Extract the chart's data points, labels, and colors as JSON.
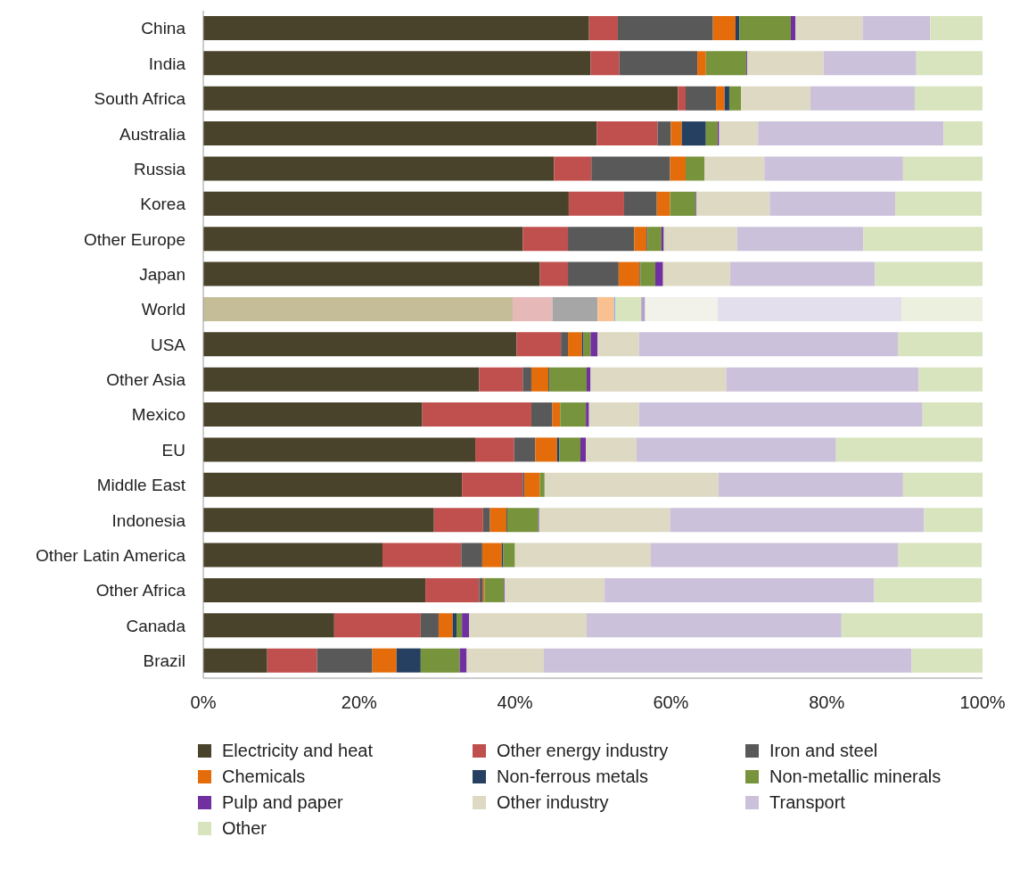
{
  "chart_data": {
    "type": "bar",
    "orientation": "horizontal",
    "stacked": true,
    "legend": "bottom",
    "categories": [
      "China",
      "India",
      "South Africa",
      "Australia",
      "Russia",
      "Korea",
      "Other Europe",
      "Japan",
      "World",
      "USA",
      "Other Asia",
      "Mexico",
      "EU",
      "Middle East",
      "Indonesia",
      "Other Latin America",
      "Other Africa",
      "Canada",
      "Brazil"
    ],
    "xlim": [
      0,
      100
    ],
    "xticks": [
      {
        "value": 0,
        "label": "0%"
      },
      {
        "value": 20,
        "label": "20%"
      },
      {
        "value": 40,
        "label": "40%"
      },
      {
        "value": 60,
        "label": "60%"
      },
      {
        "value": 80,
        "label": "80%"
      },
      {
        "value": 100,
        "label": "100%"
      }
    ],
    "series": [
      {
        "name": "Electricity and heat",
        "color": "#4a432b",
        "colors": [
          "#4a432b",
          "#4a432b",
          "#4a432b",
          "#4a432b",
          "#4a432b",
          "#4a432b",
          "#4a432b",
          "#4a432b",
          "#c4bd97",
          "#4a432b",
          "#4a432b",
          "#4a432b",
          "#4a432b",
          "#4a432b",
          "#4a432b",
          "#4a432b",
          "#4a432b",
          "#4a432b",
          "#4a432b"
        ],
        "values": [
          49.5,
          49.7,
          60.9,
          50.5,
          45.0,
          46.9,
          41.0,
          43.2,
          39.7,
          40.2,
          35.4,
          28.1,
          34.9,
          33.2,
          29.6,
          23.0,
          28.5,
          16.8,
          8.2
        ]
      },
      {
        "name": "Other energy industry",
        "color": "#c0504d",
        "colors": [
          "#c0504d",
          "#c0504d",
          "#c0504d",
          "#c0504d",
          "#c0504d",
          "#c0504d",
          "#c0504d",
          "#c0504d",
          "#e6b9b8",
          "#c0504d",
          "#c0504d",
          "#c0504d",
          "#c0504d",
          "#c0504d",
          "#c0504d",
          "#c0504d",
          "#c0504d",
          "#c0504d",
          "#c0504d"
        ],
        "values": [
          3.7,
          3.7,
          1.0,
          7.8,
          4.8,
          7.1,
          5.8,
          3.6,
          5.1,
          5.7,
          5.6,
          14.0,
          5.0,
          7.8,
          6.3,
          10.1,
          6.9,
          11.1,
          6.4
        ]
      },
      {
        "name": "Iron and steel",
        "color": "#595959",
        "colors": [
          "#595959",
          "#595959",
          "#595959",
          "#595959",
          "#595959",
          "#595959",
          "#595959",
          "#595959",
          "#a6a6a6",
          "#595959",
          "#595959",
          "#595959",
          "#595959",
          "#595959",
          "#595959",
          "#595959",
          "#595959",
          "#595959",
          "#595959"
        ],
        "values": [
          12.2,
          10.0,
          3.9,
          1.7,
          10.1,
          4.2,
          8.5,
          6.5,
          5.8,
          0.9,
          1.1,
          2.7,
          2.7,
          0.2,
          0.9,
          2.7,
          0.5,
          2.3,
          7.1
        ]
      },
      {
        "name": "Chemicals",
        "color": "#e46c0a",
        "colors": [
          "#e46c0a",
          "#e46c0a",
          "#e46c0a",
          "#e46c0a",
          "#e46c0a",
          "#e46c0a",
          "#e46c0a",
          "#e46c0a",
          "#fac090",
          "#e46c0a",
          "#e46c0a",
          "#e46c0a",
          "#e46c0a",
          "#e46c0a",
          "#e46c0a",
          "#e46c0a",
          "#e46c0a",
          "#e46c0a",
          "#e46c0a"
        ],
        "values": [
          2.9,
          1.1,
          1.1,
          1.4,
          2.0,
          1.7,
          1.6,
          2.7,
          2.1,
          1.8,
          2.2,
          1.0,
          2.8,
          2.0,
          2.1,
          2.5,
          0.2,
          1.8,
          3.1
        ]
      },
      {
        "name": "Non-ferrous metals",
        "color": "#254061",
        "colors": [
          "#254061",
          "#254061",
          "#254061",
          "#254061",
          "#254061",
          "#254061",
          "#254061",
          "#254061",
          "#95b3d7",
          "#254061",
          "#254061",
          "#254061",
          "#254061",
          "#254061",
          "#254061",
          "#254061",
          "#254061",
          "#254061",
          "#254061"
        ],
        "values": [
          0.5,
          0,
          0.6,
          3.1,
          0,
          null,
          0.1,
          0.1,
          0.2,
          0.2,
          0.1,
          0,
          0.3,
          0,
          0.1,
          0.2,
          null,
          0.5,
          3.1
        ]
      },
      {
        "name": "Non-metallic minerals",
        "color": "#77933c",
        "colors": [
          "#77933c",
          "#77933c",
          "#77933c",
          "#77933c",
          "#77933c",
          "#77933c",
          "#77933c",
          "#77933c",
          "#d7e4bd",
          "#77933c",
          "#77933c",
          "#77933c",
          "#77933c",
          "#77933c",
          "#77933c",
          "#77933c",
          "#77933c",
          "#77933c",
          "#77933c"
        ],
        "values": [
          6.6,
          5.2,
          1.5,
          1.5,
          2.4,
          3.3,
          1.8,
          1.9,
          3.3,
          0.9,
          4.8,
          3.3,
          2.7,
          0.6,
          4.0,
          1.5,
          2.5,
          0.7,
          5.0
        ]
      },
      {
        "name": "Pulp and paper",
        "color": "#7030a0",
        "colors": [
          "#7030a0",
          "#7030a0",
          "#7030a0",
          "#7030a0",
          "#7030a0",
          "#7030a0",
          "#7030a0",
          "#7030a0",
          "#b3a2c7",
          "#7030a0",
          "#7030a0",
          "#7030a0",
          "#7030a0",
          "#7030a0",
          "#7030a0",
          "#7030a0",
          "#7030a0",
          "#7030a0",
          "#7030a0"
        ],
        "values": [
          0.6,
          0.1,
          0,
          0.2,
          0,
          0.1,
          0.3,
          1.0,
          0.5,
          0.9,
          0.5,
          0.4,
          0.7,
          0,
          0.1,
          null,
          0.1,
          0.9,
          0.9
        ]
      },
      {
        "name": "Other industry",
        "color": "#ddd9c3",
        "colors": [
          "#ddd9c3",
          "#ddd9c3",
          "#ddd9c3",
          "#ddd9c3",
          "#ddd9c3",
          "#ddd9c3",
          "#ddd9c3",
          "#ddd9c3",
          "#f2f2ea",
          "#ddd9c3",
          "#ddd9c3",
          "#ddd9c3",
          "#ddd9c3",
          "#ddd9c3",
          "#ddd9c3",
          "#ddd9c3",
          "#ddd9c3",
          "#ddd9c3",
          "#ddd9c3"
        ],
        "values": [
          8.6,
          9.8,
          8.9,
          5.0,
          7.7,
          9.4,
          9.4,
          8.6,
          9.3,
          5.3,
          17.4,
          6.4,
          6.5,
          22.3,
          16.8,
          17.4,
          12.8,
          15.1,
          9.9
        ]
      },
      {
        "name": "Transport",
        "color": "#ccc1da",
        "colors": [
          "#ccc1da",
          "#ccc1da",
          "#ccc1da",
          "#ccc1da",
          "#ccc1da",
          "#ccc1da",
          "#ccc1da",
          "#ccc1da",
          "#e4dfec",
          "#ccc1da",
          "#ccc1da",
          "#ccc1da",
          "#ccc1da",
          "#ccc1da",
          "#ccc1da",
          "#ccc1da",
          "#ccc1da",
          "#ccc1da",
          "#ccc1da"
        ],
        "values": [
          8.7,
          11.9,
          13.4,
          23.8,
          17.8,
          16.1,
          16.2,
          18.6,
          23.6,
          33.3,
          24.7,
          36.4,
          25.6,
          23.7,
          32.6,
          31.8,
          34.6,
          32.7,
          47.2
        ]
      },
      {
        "name": "Other",
        "color": "#d7e4bd",
        "colors": [
          "#d7e4bd",
          "#d7e4bd",
          "#d7e4bd",
          "#d7e4bd",
          "#d7e4bd",
          "#d7e4bd",
          "#d7e4bd",
          "#d7e4bd",
          "#ebf1de",
          "#d7e4bd",
          "#d7e4bd",
          "#d7e4bd",
          "#d7e4bd",
          "#d7e4bd",
          "#d7e4bd",
          "#d7e4bd",
          "#d7e4bd",
          "#d7e4bd",
          "#d7e4bd"
        ],
        "values": [
          6.7,
          8.5,
          8.7,
          5.0,
          10.2,
          11.1,
          15.3,
          13.8,
          10.4,
          10.8,
          8.2,
          7.7,
          18.8,
          10.2,
          7.5,
          10.7,
          13.8,
          18.1,
          9.1
        ]
      }
    ]
  }
}
